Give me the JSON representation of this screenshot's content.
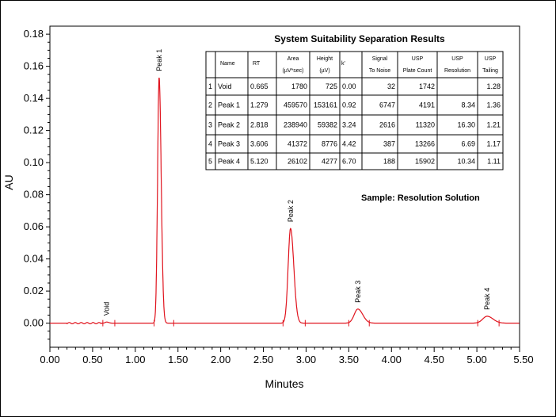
{
  "chart_data": {
    "type": "line",
    "title": "",
    "xlabel": "Minutes",
    "ylabel": "AU",
    "xlim": [
      0,
      5.5
    ],
    "ylim": [
      -0.015,
      0.185
    ],
    "x_ticks": [
      "0.00",
      "0.50",
      "1.00",
      "1.50",
      "2.00",
      "2.50",
      "3.00",
      "3.50",
      "4.00",
      "4.50",
      "5.00",
      "5.50"
    ],
    "y_ticks": [
      "0.00",
      "0.02",
      "0.04",
      "0.06",
      "0.08",
      "0.10",
      "0.12",
      "0.14",
      "0.16",
      "0.18"
    ],
    "line_color": "#e0141e",
    "peaks": [
      {
        "label": "Void",
        "rt": 0.665,
        "height": 0.0007,
        "width": 0.02
      },
      {
        "label": "Peak 1",
        "rt": 1.279,
        "height": 0.153,
        "width": 0.021
      },
      {
        "label": "Peak 2",
        "rt": 2.818,
        "height": 0.059,
        "width": 0.033
      },
      {
        "label": "Peak 3",
        "rt": 3.606,
        "height": 0.0088,
        "width": 0.05
      },
      {
        "label": "Peak 4",
        "rt": 5.12,
        "height": 0.0043,
        "width": 0.06
      }
    ],
    "integration_marks": [
      0.62,
      0.76,
      1.22,
      1.45,
      2.73,
      2.99,
      3.5,
      3.74,
      5.01,
      5.26
    ],
    "annotation": "Sample: Resolution Solution"
  },
  "table": {
    "title": "System Suitability Separation Results",
    "headers": [
      [
        "Name"
      ],
      [
        "RT"
      ],
      [
        "Area",
        "(µV*sec)"
      ],
      [
        "Height",
        "(µV)"
      ],
      [
        "k'"
      ],
      [
        "Signal",
        "To Noise"
      ],
      [
        "USP",
        "Plate Count"
      ],
      [
        "USP",
        "Resolution"
      ],
      [
        "USP",
        "Tailing"
      ]
    ],
    "rows": [
      [
        "1",
        "Void",
        "0.665",
        "1780",
        "725",
        "0.00",
        "32",
        "1742",
        "",
        "1.28"
      ],
      [
        "2",
        "Peak 1",
        "1.279",
        "459570",
        "153161",
        "0.92",
        "6747",
        "4191",
        "8.34",
        "1.36"
      ],
      [
        "3",
        "Peak 2",
        "2.818",
        "238940",
        "59382",
        "3.24",
        "2616",
        "11320",
        "16.30",
        "1.21"
      ],
      [
        "4",
        "Peak 3",
        "3.606",
        "41372",
        "8776",
        "4.42",
        "387",
        "13266",
        "6.69",
        "1.17"
      ],
      [
        "5",
        "Peak 4",
        "5.120",
        "26102",
        "4277",
        "6.70",
        "188",
        "15902",
        "10.34",
        "1.11"
      ]
    ]
  }
}
